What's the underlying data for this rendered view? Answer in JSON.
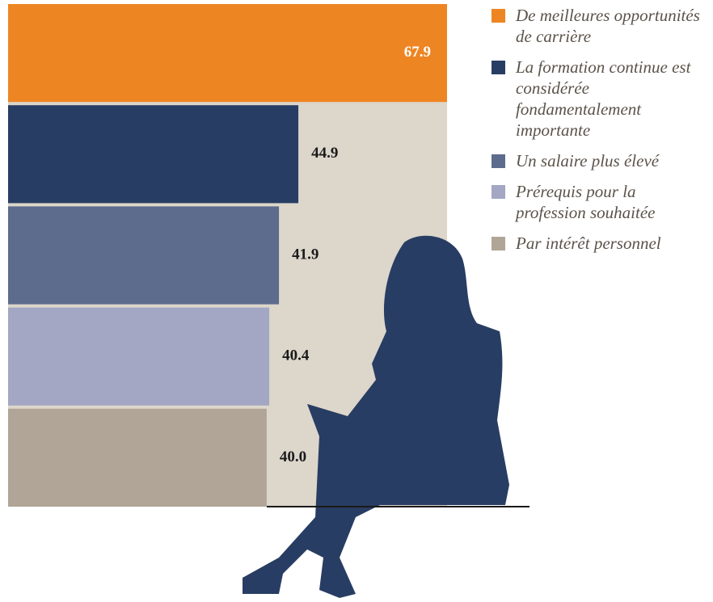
{
  "chart_data": {
    "type": "bar",
    "orientation": "horizontal",
    "categories": [
      "De meilleures opportunités de carrière",
      "La formation continue est considérée fondamentalement importante",
      "Un salaire plus élevé",
      "Prérequis pour la profession souhaitée",
      "Par intérêt personnel"
    ],
    "values": [
      67.9,
      44.9,
      41.9,
      40.4,
      40.0
    ],
    "value_labels": [
      "67.9",
      "44.9",
      "41.9",
      "40.4",
      "40.0"
    ],
    "colors": [
      "#ee8523",
      "#283d63",
      "#5d6b8d",
      "#a3a7c4",
      "#b0a596"
    ],
    "legend": "right"
  }
}
